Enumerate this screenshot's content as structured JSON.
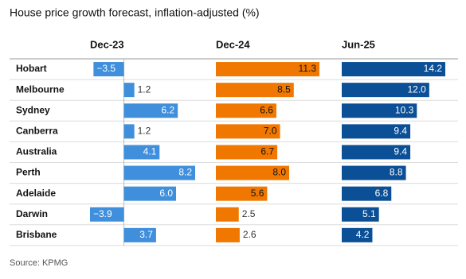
{
  "chart_data": {
    "type": "bar",
    "orientation": "horizontal",
    "layout": "small-multiples",
    "title": "House price growth forecast, inflation-adjusted (%)",
    "source": "Source: KPMG",
    "categories": [
      "Hobart",
      "Melbourne",
      "Sydney",
      "Canberra",
      "Australia",
      "Perth",
      "Adelaide",
      "Darwin",
      "Brisbane"
    ],
    "series": [
      {
        "name": "Dec-23",
        "color": "#3f8fdc",
        "label_color": "#ffffff",
        "values": [
          -3.5,
          1.2,
          6.2,
          1.2,
          4.1,
          8.2,
          6.0,
          -3.9,
          3.7
        ],
        "value_labels": [
          "−3.5",
          "1.2",
          "6.2",
          "1.2",
          "4.1",
          "8.2",
          "6.0",
          "−3.9",
          "3.7"
        ]
      },
      {
        "name": "Dec-24",
        "color": "#f07800",
        "label_color": "#121212",
        "values": [
          11.3,
          8.5,
          6.6,
          7.0,
          6.7,
          8.0,
          5.6,
          2.5,
          2.6
        ],
        "value_labels": [
          "11.3",
          "8.5",
          "6.6",
          "7.0",
          "6.7",
          "8.0",
          "5.6",
          "2.5",
          "2.6"
        ]
      },
      {
        "name": "Jun-25",
        "color": "#0b4f96",
        "label_color": "#ffffff",
        "values": [
          14.2,
          12.0,
          10.3,
          9.4,
          9.4,
          8.8,
          6.8,
          5.1,
          4.2
        ],
        "value_labels": [
          "14.2",
          "12.0",
          "10.3",
          "9.4",
          "9.4",
          "8.8",
          "6.8",
          "5.1",
          "4.2"
        ]
      }
    ]
  }
}
